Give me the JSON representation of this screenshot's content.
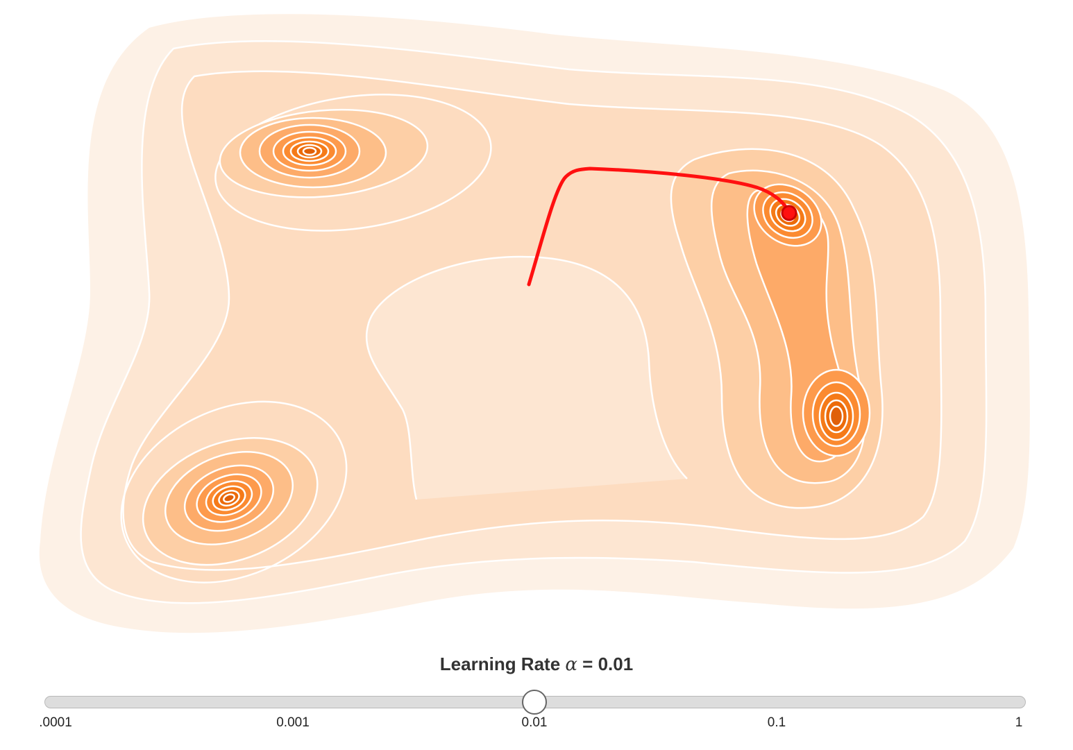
{
  "colors": {
    "levels": [
      "#fdf1e6",
      "#fde6d2",
      "#fddcc0",
      "#fdcfa6",
      "#fdbe88",
      "#fdaa68",
      "#fd9a4c",
      "#fb8a30",
      "#f57a18",
      "#ec6b0a",
      "#e06008",
      "#d85706"
    ],
    "contour_line": "#ffffff",
    "path": "#ff1010",
    "current_point": "#cc0000",
    "slider_track": "#dddddd",
    "slider_thumb": "#ffffff"
  },
  "slider": {
    "title_prefix": "Learning Rate ",
    "alpha_symbol": "α",
    "title_suffix": " = 0.01",
    "value": 0.01,
    "min": 0.0001,
    "max": 1,
    "scale": "log",
    "tick_labels": [
      ".0001",
      "0.001",
      "0.01",
      "0.1",
      "1"
    ]
  }
}
